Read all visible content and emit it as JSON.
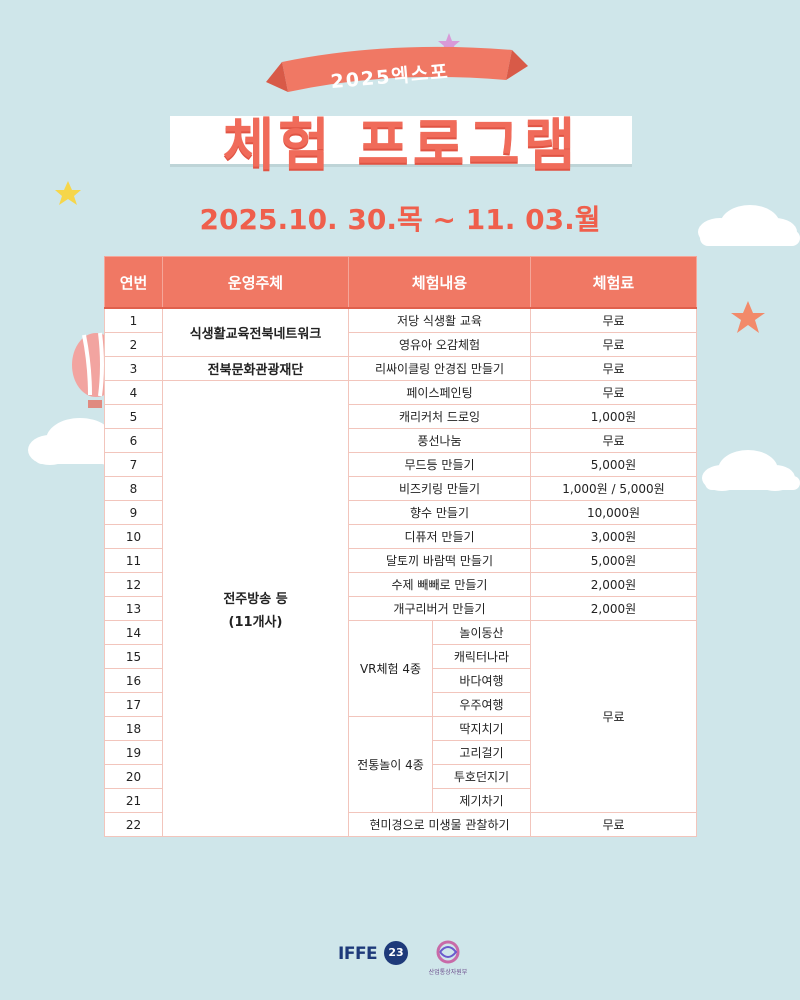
{
  "ribbon": {
    "label": "2025엑스포"
  },
  "title": "체험 프로그램",
  "date": "2025.10. 30.목 ~ 11. 03.월",
  "table": {
    "headers": [
      "연번",
      "운영주체",
      "체험내용",
      "체험료"
    ],
    "operators": {
      "op1": "식생활교육전북네트워크",
      "op2": "전북문화관광재단",
      "op3_line1": "전주방송 등",
      "op3_line2": "(11개사)"
    },
    "groups": {
      "vr": "VR체험 4종",
      "traditional": "전통놀이 4종"
    },
    "shared_fee": "무료",
    "rows": [
      {
        "no": "1",
        "content": "저당 식생활 교육",
        "fee": "무료"
      },
      {
        "no": "2",
        "content": "영유아 오감체험",
        "fee": "무료"
      },
      {
        "no": "3",
        "content": "리싸이클링 안경집 만들기",
        "fee": "무료"
      },
      {
        "no": "4",
        "content": "페이스페인팅",
        "fee": "무료"
      },
      {
        "no": "5",
        "content": "캐리커처 드로잉",
        "fee": "1,000원"
      },
      {
        "no": "6",
        "content": "풍선나눔",
        "fee": "무료"
      },
      {
        "no": "7",
        "content": "무드등 만들기",
        "fee": "5,000원"
      },
      {
        "no": "8",
        "content": "비즈키링 만들기",
        "fee": "1,000원 / 5,000원"
      },
      {
        "no": "9",
        "content": "향수 만들기",
        "fee": "10,000원"
      },
      {
        "no": "10",
        "content": "디퓨저 만들기",
        "fee": "3,000원"
      },
      {
        "no": "11",
        "content": "달토끼 바람떡 만들기",
        "fee": "5,000원"
      },
      {
        "no": "12",
        "content": "수제 빼빼로 만들기",
        "fee": "2,000원"
      },
      {
        "no": "13",
        "content": "개구리버거 만들기",
        "fee": "2,000원"
      },
      {
        "no": "14",
        "content": "놀이동산"
      },
      {
        "no": "15",
        "content": "캐릭터나라"
      },
      {
        "no": "16",
        "content": "바다여행"
      },
      {
        "no": "17",
        "content": "우주여행"
      },
      {
        "no": "18",
        "content": "딱지치기"
      },
      {
        "no": "19",
        "content": "고리걸기"
      },
      {
        "no": "20",
        "content": "투호던지기"
      },
      {
        "no": "21",
        "content": "제기차기"
      },
      {
        "no": "22",
        "content": "현미경으로 미생물 관찰하기",
        "fee": "무료"
      }
    ]
  },
  "footer": {
    "logo1_text": "IFFE",
    "logo1_badge": "23",
    "logo2_text": "산업통상자원부"
  },
  "colors": {
    "accent": "#f07864",
    "title": "#f06b5a",
    "background": "#cfe6ea"
  }
}
